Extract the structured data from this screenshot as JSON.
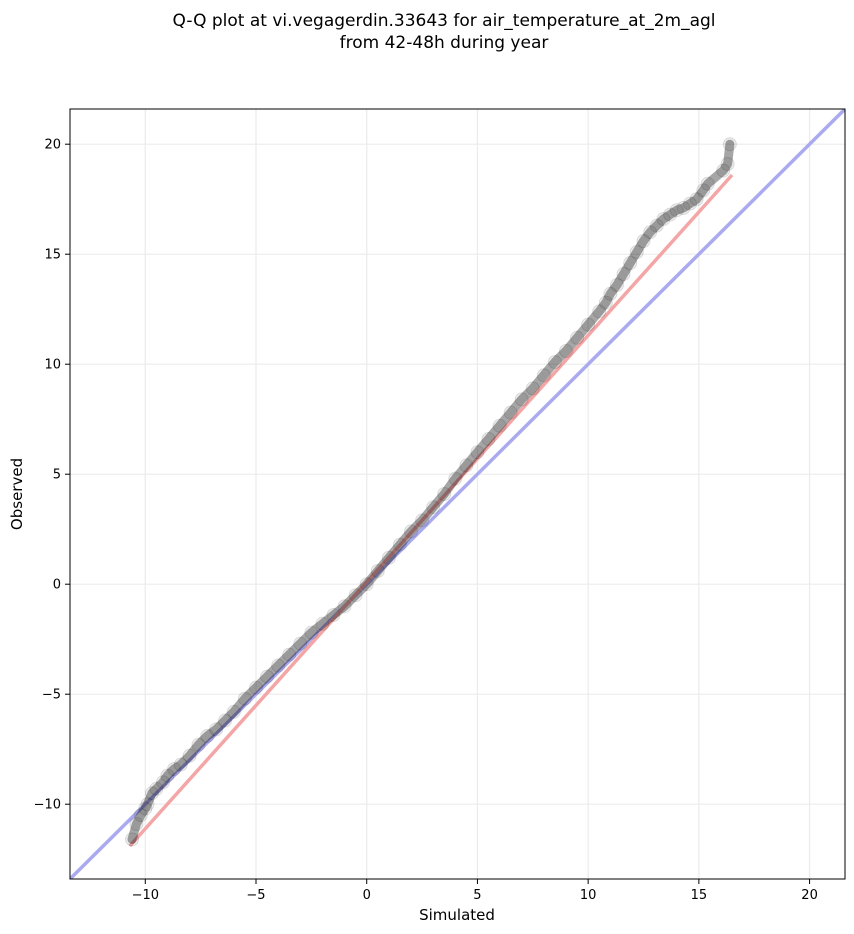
{
  "chart_data": {
    "type": "scatter",
    "title": "Q-Q plot at vi.vegagerdin.33643 for air_temperature_at_2m_agl",
    "subtitle": "from 42-48h during year",
    "xlabel": "Simulated",
    "ylabel": "Observed",
    "xlim": [
      -13.4,
      21.6
    ],
    "ylim": [
      -13.4,
      21.6
    ],
    "xticks": [
      -10,
      -5,
      0,
      5,
      10,
      15,
      20
    ],
    "yticks": [
      -10,
      -5,
      0,
      5,
      10,
      15,
      20
    ],
    "grid": true,
    "legend": "none",
    "colors": {
      "points": "#000000",
      "identity_line": "#aaaaf0",
      "fit_line": "#f4a6a6",
      "grid": "#ebebeb"
    },
    "identity_line": {
      "x": [
        -13.4,
        21.6
      ],
      "y": [
        -13.4,
        21.6
      ]
    },
    "fit_line": {
      "x": [
        -10.7,
        16.5
      ],
      "y": [
        -11.9,
        18.6
      ]
    },
    "quantiles": {
      "x": [
        -10.6,
        -10.4,
        -10.2,
        -10.0,
        -9.9,
        -9.7,
        -9.5,
        -9.2,
        -9.0,
        -8.7,
        -8.4,
        -8.0,
        -7.6,
        -7.2,
        -6.8,
        -6.4,
        -6.0,
        -5.5,
        -5.0,
        -4.5,
        -4.0,
        -3.5,
        -3.0,
        -2.5,
        -2.0,
        -1.5,
        -1.0,
        -0.5,
        0.0,
        0.5,
        1.0,
        1.5,
        2.0,
        2.5,
        3.0,
        3.5,
        4.0,
        4.5,
        5.0,
        5.5,
        6.0,
        6.5,
        7.0,
        7.5,
        8.0,
        8.5,
        9.0,
        9.5,
        10.0,
        10.5,
        10.8,
        11.0,
        11.3,
        11.6,
        11.9,
        12.2,
        12.5,
        12.8,
        13.1,
        13.4,
        13.7,
        14.0,
        14.3,
        14.6,
        14.9,
        15.2,
        15.4,
        16.1,
        16.3,
        16.4
      ],
      "y": [
        -11.6,
        -10.9,
        -10.5,
        -10.2,
        -10.0,
        -9.5,
        -9.3,
        -9.0,
        -8.7,
        -8.4,
        -8.2,
        -7.8,
        -7.3,
        -6.9,
        -6.6,
        -6.2,
        -5.8,
        -5.2,
        -4.7,
        -4.2,
        -3.7,
        -3.2,
        -2.7,
        -2.2,
        -1.8,
        -1.4,
        -1.0,
        -0.5,
        0.0,
        0.6,
        1.2,
        1.8,
        2.4,
        2.9,
        3.5,
        4.1,
        4.8,
        5.4,
        6.0,
        6.6,
        7.2,
        7.8,
        8.4,
        8.9,
        9.5,
        10.1,
        10.6,
        11.2,
        11.8,
        12.4,
        12.8,
        13.2,
        13.6,
        14.1,
        14.6,
        15.1,
        15.6,
        16.0,
        16.3,
        16.6,
        16.8,
        17.0,
        17.1,
        17.3,
        17.5,
        17.9,
        18.2,
        18.8,
        19.1,
        20.0
      ]
    }
  }
}
